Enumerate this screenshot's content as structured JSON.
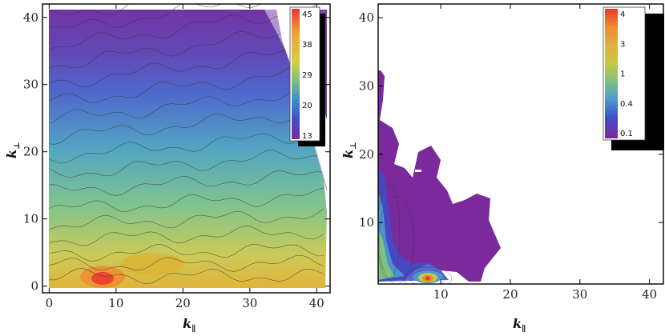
{
  "chart_data": [
    {
      "type": "heatmap",
      "subtype": "contour",
      "xlabel_base": "k",
      "xlabel_sub": "∥",
      "ylabel_base": "k",
      "ylabel_sub": "⊥",
      "xlim": [
        -1,
        42
      ],
      "ylim": [
        -1,
        42
      ],
      "xticks": [
        0,
        10,
        20,
        30,
        40
      ],
      "yticks": [
        0,
        10,
        20,
        30,
        40
      ],
      "colorbar": {
        "labels": [
          "45",
          "38",
          "29",
          "20",
          "13"
        ],
        "colors": [
          "#e8382d",
          "#f0a035",
          "#d8d040",
          "#7cc080",
          "#3a8ec8",
          "#3f4fc8",
          "#7a2a9a"
        ]
      },
      "grid": false,
      "legend_position": "top-right"
    },
    {
      "type": "heatmap",
      "subtype": "contour",
      "xlabel_base": "k",
      "xlabel_sub": "∥",
      "ylabel_base": "k",
      "ylabel_sub": "⊥",
      "xlim": [
        1,
        42
      ],
      "ylim": [
        1,
        42
      ],
      "xticks": [
        10,
        20,
        30,
        40
      ],
      "yticks": [
        10,
        20,
        30,
        40
      ],
      "colorbar": {
        "labels": [
          "4",
          "3",
          "1",
          "0.4",
          "0.1"
        ],
        "colors": [
          "#e8382d",
          "#f08a30",
          "#e0b040",
          "#c8c840",
          "#80c080",
          "#4a9ad0",
          "#3f4fc8",
          "#7a2a9a"
        ]
      },
      "grid": false,
      "legend_position": "top-right"
    }
  ]
}
